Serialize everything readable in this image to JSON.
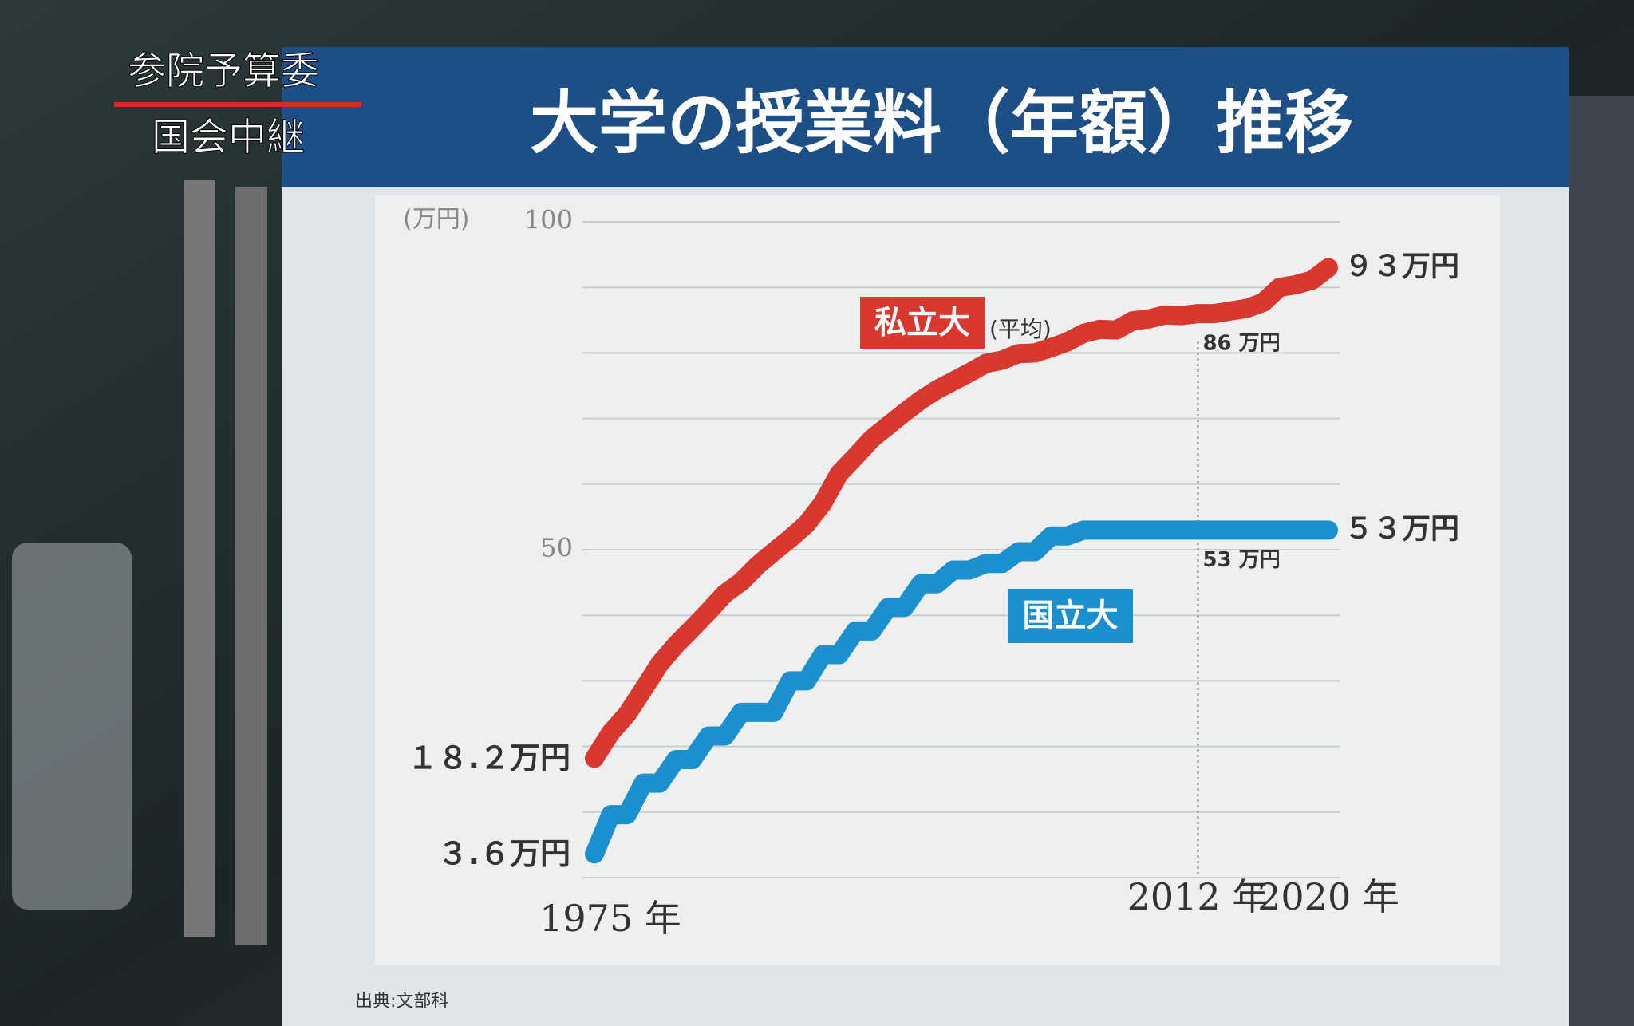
{
  "broadcast": {
    "program": "参院予算委",
    "caption": "国会中継"
  },
  "chart_data": {
    "type": "line",
    "title": "大学の授業料（年額）推移",
    "y_unit": "(万円)",
    "source": "出典:文部科",
    "x": [
      1975,
      1976,
      1977,
      1978,
      1979,
      1980,
      1981,
      1982,
      1983,
      1984,
      1985,
      1986,
      1987,
      1988,
      1989,
      1990,
      1991,
      1992,
      1993,
      1994,
      1995,
      1996,
      1997,
      1998,
      1999,
      2000,
      2001,
      2002,
      2003,
      2004,
      2005,
      2006,
      2007,
      2008,
      2009,
      2010,
      2011,
      2012,
      2013,
      2014,
      2015,
      2016,
      2017,
      2018,
      2019,
      2020
    ],
    "xlim": [
      1975,
      2020
    ],
    "xticks": [
      {
        "value": 1975,
        "label": "1975 年"
      },
      {
        "value": 2012,
        "label": "2012 年"
      },
      {
        "value": 2020,
        "label": "2020 年"
      }
    ],
    "marker_line_x": {
      "value": 2012
    },
    "ylim": [
      0,
      100
    ],
    "yticks": [
      50,
      100
    ],
    "ygrid": [
      0,
      10,
      20,
      30,
      40,
      50,
      60,
      70,
      80,
      90,
      100
    ],
    "grid": true,
    "series": [
      {
        "name": "私立大",
        "note": "(平均)",
        "color": "#d8382e",
        "values": [
          18.2,
          22.1,
          24.9,
          28.7,
          32.6,
          35.5,
          38.0,
          40.6,
          43.3,
          45.1,
          47.6,
          49.7,
          51.7,
          53.9,
          57.1,
          61.6,
          64.2,
          66.9,
          68.9,
          70.9,
          72.8,
          74.4,
          75.7,
          77.0,
          78.4,
          78.9,
          79.9,
          80.0,
          80.8,
          81.7,
          83.0,
          83.6,
          83.5,
          84.9,
          85.2,
          85.8,
          85.7,
          86,
          86.0,
          86.4,
          86.8,
          87.7,
          90.0,
          90.4,
          91.1,
          93
        ],
        "value_labels": [
          "１８.２万円",
          null,
          null,
          null,
          null,
          null,
          null,
          null,
          null,
          null,
          null,
          null,
          null,
          null,
          null,
          null,
          null,
          null,
          null,
          null,
          null,
          null,
          null,
          null,
          null,
          null,
          null,
          null,
          null,
          null,
          null,
          null,
          null,
          null,
          null,
          null,
          null,
          "86 万円",
          null,
          null,
          null,
          null,
          null,
          null,
          null,
          "９３万円"
        ]
      },
      {
        "name": "国立大",
        "color": "#1b8fd0",
        "values": [
          3.6,
          9.6,
          9.6,
          14.4,
          14.4,
          18.0,
          18.0,
          21.6,
          21.6,
          25.2,
          25.2,
          25.2,
          30.0,
          30.0,
          34.0,
          34.0,
          37.6,
          37.6,
          41.2,
          41.2,
          44.8,
          44.8,
          46.9,
          46.9,
          47.9,
          47.9,
          49.7,
          49.7,
          52.1,
          52.1,
          53,
          53,
          53,
          53,
          53,
          53,
          53,
          53,
          53,
          53,
          53,
          53,
          53,
          53,
          53,
          53
        ],
        "value_labels": [
          "３.６万円",
          null,
          null,
          null,
          null,
          null,
          null,
          null,
          null,
          null,
          null,
          null,
          null,
          null,
          null,
          null,
          null,
          null,
          null,
          null,
          null,
          null,
          null,
          null,
          null,
          null,
          null,
          null,
          null,
          null,
          null,
          null,
          null,
          null,
          null,
          null,
          null,
          "53 万円",
          null,
          null,
          null,
          null,
          null,
          null,
          null,
          "５３万円"
        ]
      }
    ]
  }
}
